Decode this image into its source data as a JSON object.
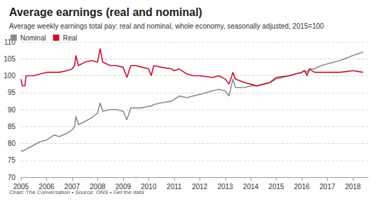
{
  "chart_data": {
    "type": "line",
    "title": "Average earnings (real and nominal)",
    "subtitle": "Average weekly earnings total pay: real and nominal, whole economy, seasonally adjusted, 2015=100",
    "source": "Chart: The Conversation • Source: ONS • Get the data",
    "x": [
      2005.0,
      2005.05,
      2005.15,
      2005.2,
      2005.5,
      2005.75,
      2006.0,
      2006.3,
      2006.5,
      2006.8,
      2007.0,
      2007.1,
      2007.15,
      2007.25,
      2007.5,
      2007.75,
      2008.0,
      2008.1,
      2008.2,
      2008.5,
      2008.75,
      2009.0,
      2009.15,
      2009.3,
      2009.5,
      2009.75,
      2010.0,
      2010.1,
      2010.2,
      2010.5,
      2010.9,
      2011.0,
      2011.2,
      2011.5,
      2011.75,
      2012.0,
      2012.5,
      2012.75,
      2013.0,
      2013.15,
      2013.3,
      2013.4,
      2013.75,
      2014.0,
      2014.25,
      2014.5,
      2014.75,
      2015.0,
      2015.5,
      2015.75,
      2016.0,
      2016.1,
      2016.2,
      2016.3,
      2016.5,
      2016.75,
      2017.0,
      2017.5,
      2018.0,
      2018.4
    ],
    "series": [
      {
        "name": "Nominal",
        "color": "#8c8c8c",
        "values": [
          78,
          77.7,
          78,
          78.3,
          79.5,
          80.5,
          81,
          82.5,
          82,
          83,
          84,
          85,
          88,
          85.5,
          86.5,
          87.5,
          89,
          92,
          89.5,
          90,
          90,
          89.5,
          87,
          90.5,
          90.5,
          90.5,
          91,
          91,
          91.5,
          92,
          92.5,
          93,
          94,
          93.5,
          94,
          94.5,
          95.5,
          96,
          95.5,
          94,
          99,
          96.5,
          96.5,
          97,
          97,
          97.5,
          98,
          99,
          100,
          100.5,
          101,
          101.5,
          101,
          102,
          102,
          103,
          103.5,
          104.5,
          106,
          107
        ]
      },
      {
        "name": "Real",
        "color": "#c8102e",
        "values": [
          99,
          97,
          97,
          100,
          100,
          100.5,
          101,
          101,
          101,
          101.5,
          102,
          103,
          106,
          103,
          104,
          104.5,
          104,
          108,
          104,
          103,
          103,
          102.5,
          99.5,
          103,
          103,
          102.5,
          102,
          100,
          103,
          102.5,
          102,
          101.5,
          102,
          100.5,
          100,
          100,
          99.5,
          100,
          99,
          97.5,
          101,
          99,
          98,
          97.5,
          97,
          97.5,
          98,
          99.5,
          100,
          100.5,
          101,
          101.5,
          100,
          102,
          101,
          101,
          101,
          101,
          101.5,
          101
        ]
      }
    ],
    "xlim": [
      2005,
      2018.6
    ],
    "xticks": [
      2005,
      2006,
      2007,
      2008,
      2009,
      2010,
      2011,
      2012,
      2013,
      2014,
      2015,
      2016,
      2017,
      2018
    ],
    "ylim": [
      70,
      110
    ],
    "yticks": [
      70,
      75,
      80,
      85,
      90,
      95,
      100,
      105,
      110
    ],
    "grid": true,
    "legend": "top-left"
  }
}
